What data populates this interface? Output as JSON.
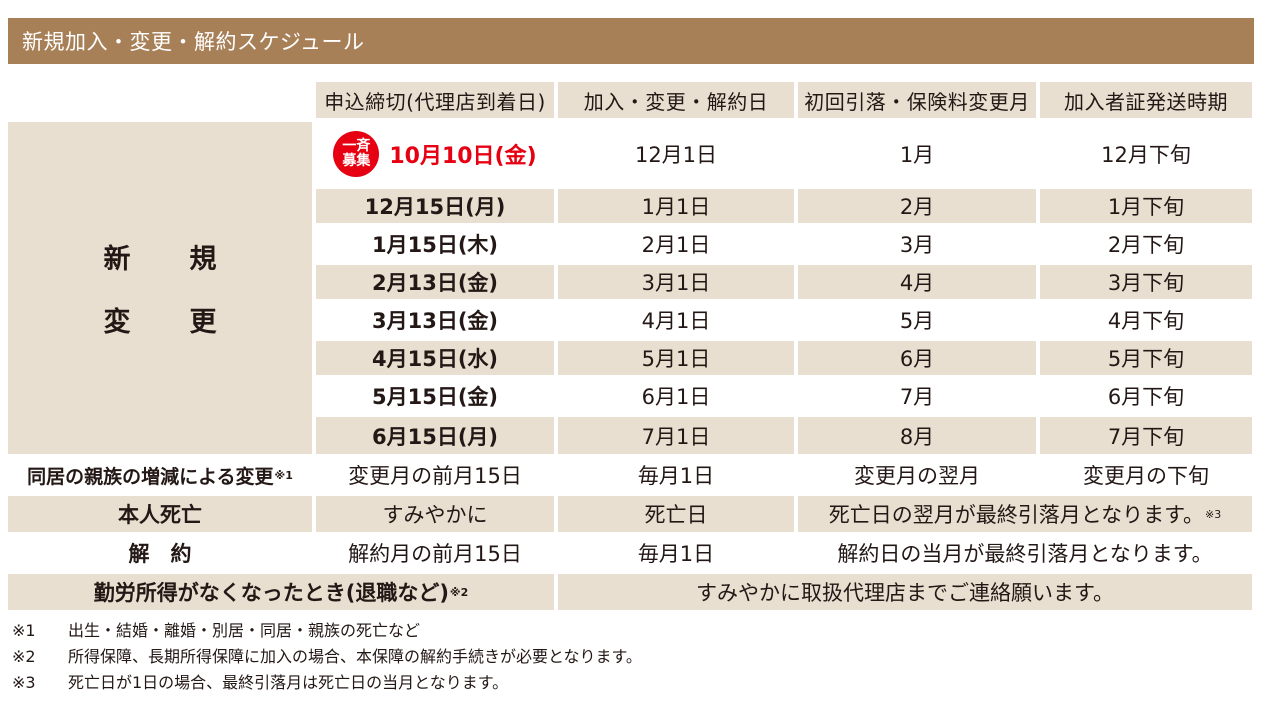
{
  "title": "新規加入・変更・解約スケジュール",
  "headers": [
    "申込締切(代理店到着日)",
    "加入・変更・解約日",
    "初回引落・保険料変更月",
    "加入者証発送時期"
  ],
  "group_label": [
    "新　規",
    "変　更"
  ],
  "badge": [
    "一斉",
    "募集"
  ],
  "rows": [
    {
      "deadline": "10月10日(金)",
      "date": "12月1日",
      "month": "1月",
      "ship": "12月下旬"
    },
    {
      "deadline": "12月15日(月)",
      "date": "1月1日",
      "month": "2月",
      "ship": "1月下旬"
    },
    {
      "deadline": "1月15日(木)",
      "date": "2月1日",
      "month": "3月",
      "ship": "2月下旬"
    },
    {
      "deadline": "2月13日(金)",
      "date": "3月1日",
      "month": "4月",
      "ship": "3月下旬"
    },
    {
      "deadline": "3月13日(金)",
      "date": "4月1日",
      "month": "5月",
      "ship": "4月下旬"
    },
    {
      "deadline": "4月15日(水)",
      "date": "5月1日",
      "month": "6月",
      "ship": "5月下旬"
    },
    {
      "deadline": "5月15日(金)",
      "date": "6月1日",
      "month": "7月",
      "ship": "6月下旬"
    },
    {
      "deadline": "6月15日(月)",
      "date": "7月1日",
      "month": "8月",
      "ship": "7月下旬"
    }
  ],
  "family": {
    "label": "同居の親族の増減による変更",
    "note": "※1",
    "deadline": "変更月の前月15日",
    "date": "毎月1日",
    "month": "変更月の翌月",
    "ship": "変更月の下旬"
  },
  "death": {
    "label": "本人死亡",
    "deadline": "すみやかに",
    "date": "死亡日",
    "merged": "死亡日の翌月が最終引落月となります。",
    "note": "※3"
  },
  "cancel": {
    "label": "解　約",
    "deadline": "解約月の前月15日",
    "date": "毎月1日",
    "merged": "解約日の当月が最終引落月となります。"
  },
  "retire": {
    "label": "勤労所得がなくなったとき(退職など)",
    "note": "※2",
    "merged": "すみやかに取扱代理店までご連絡願います。"
  },
  "footnotes": [
    {
      "mark": "※1",
      "text": "出生・結婚・離婚・別居・同居・親族の死亡など"
    },
    {
      "mark": "※2",
      "text": "所得保障、長期所得保障に加入の場合、本保障の解約手続きが必要となります。"
    },
    {
      "mark": "※3",
      "text": "死亡日が1日の場合、最終引落月は死亡日の当月となります。"
    }
  ],
  "colors": {
    "title_bg": "#a88058",
    "shade": "#e9dfd0",
    "accent_red": "#e60012"
  }
}
